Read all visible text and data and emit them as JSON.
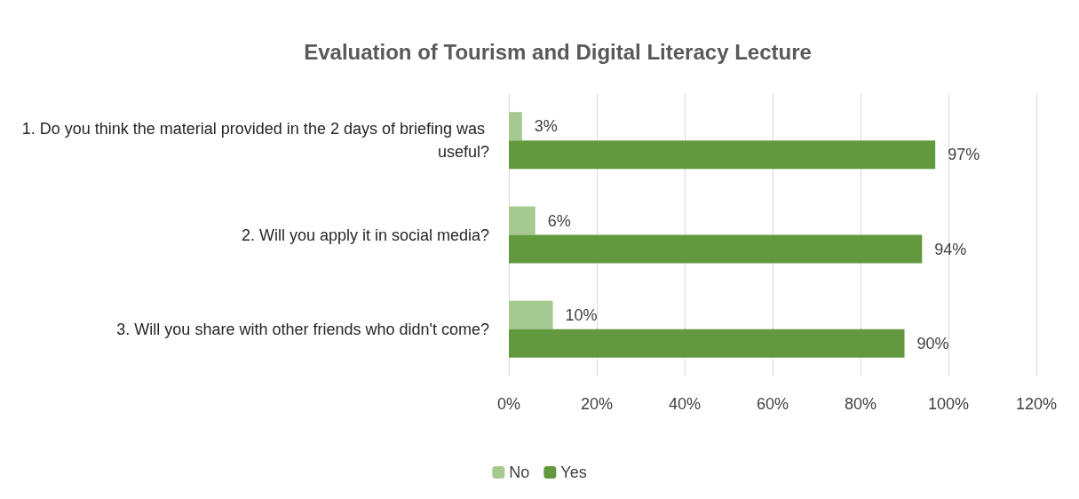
{
  "chart_data": {
    "type": "bar",
    "orientation": "horizontal",
    "title": "Evaluation of Tourism and Digital Literacy Lecture",
    "categories": [
      "1. Do you think the material provided in the 2 days of briefing was useful?",
      "2. Will you apply it in social media?",
      "3. Will you share with other friends who didn't come?"
    ],
    "series": [
      {
        "name": "No",
        "color": "#a6c98f",
        "values": [
          3,
          6,
          10
        ],
        "value_labels": [
          "3%",
          "6%",
          "10%"
        ]
      },
      {
        "name": "Yes",
        "color": "#62993e",
        "values": [
          97,
          94,
          90
        ],
        "value_labels": [
          "97%",
          "94%",
          "90%"
        ]
      }
    ],
    "xlim": [
      0,
      120
    ],
    "xticks": [
      {
        "value": 0,
        "label": "0%"
      },
      {
        "value": 20,
        "label": "20%"
      },
      {
        "value": 40,
        "label": "40%"
      },
      {
        "value": 60,
        "label": "60%"
      },
      {
        "value": 80,
        "label": "80%"
      },
      {
        "value": 100,
        "label": "100%"
      },
      {
        "value": 120,
        "label": "120%"
      }
    ],
    "grid": "x",
    "legend": "bottom"
  }
}
